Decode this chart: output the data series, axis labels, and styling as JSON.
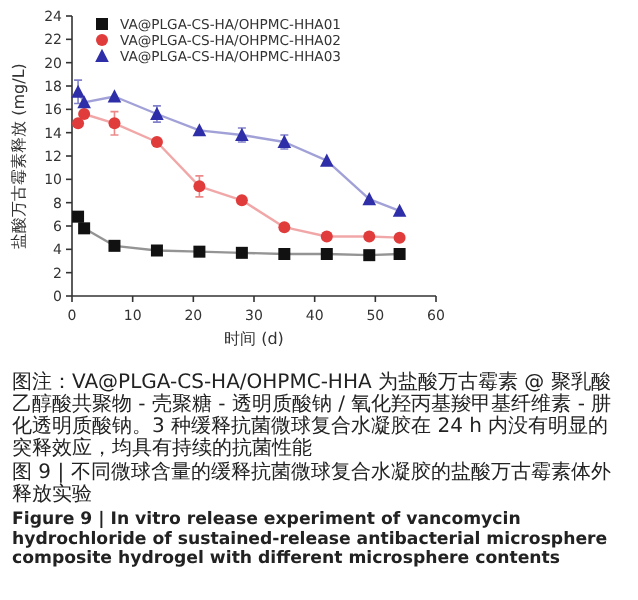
{
  "chart_data": {
    "type": "line",
    "xlabel": "时间 (d)",
    "ylabel": "盐酸万古霉素释放 (mg/L)",
    "xlim": [
      0,
      60
    ],
    "xticks": [
      0,
      10,
      20,
      30,
      40,
      50,
      60
    ],
    "ylim": [
      0,
      24
    ],
    "yticks": [
      0,
      2,
      4,
      6,
      8,
      10,
      12,
      14,
      16,
      18,
      20,
      22,
      24
    ],
    "x": [
      1,
      2,
      7,
      14,
      21,
      28,
      35,
      42,
      49,
      54
    ],
    "legend": "top left",
    "grid": false,
    "series": [
      {
        "name": "VA@PLGA-CS-HA/OHPMC-HHA01",
        "color": "#111111",
        "marker": "square",
        "values": [
          6.8,
          5.8,
          4.3,
          3.9,
          3.8,
          3.7,
          3.6,
          3.6,
          3.5,
          3.6
        ]
      },
      {
        "name": "VA@PLGA-CS-HA/OHPMC-HHA02",
        "color": "#e03c3c",
        "marker": "circle",
        "values": [
          14.8,
          15.6,
          14.8,
          13.2,
          9.4,
          8.2,
          5.9,
          5.1,
          5.1,
          5.0
        ],
        "errors": [
          null,
          null,
          1.0,
          null,
          0.9,
          null,
          null,
          null,
          null,
          null
        ]
      },
      {
        "name": "VA@PLGA-CS-HA/OHPMC-HHA03",
        "color": "#2e2ea8",
        "marker": "triangle",
        "values": [
          17.5,
          16.6,
          17.1,
          15.6,
          14.2,
          13.8,
          13.2,
          11.6,
          8.3,
          7.3
        ],
        "errors": [
          1.0,
          null,
          null,
          0.7,
          null,
          0.6,
          0.6,
          null,
          null,
          null
        ]
      }
    ],
    "annotations": [
      "图注：VA@PLGA-CS-HA/OHPMC-HHA 为盐酸万古霉素 @ 聚乳酸乙醇酸共聚物 - 壳聚糖 - 透明质酸钠 / 氧化羟丙基羧甲基纤维素 - 肼化透明质酸钠。3 种缓释抗菌微球复合水凝胶在 24 h 内没有明显的突释效应，均具有持续的抗菌性能",
      "图 9 | 不同微球含量的缓释抗菌微球复合水凝胶的盐酸万古霉素体外释放实验",
      "Figure 9 | In vitro release experiment of vancomycin hydrochloride of sustained-release antibacterial microsphere composite hydrogel with different microsphere contents"
    ]
  }
}
